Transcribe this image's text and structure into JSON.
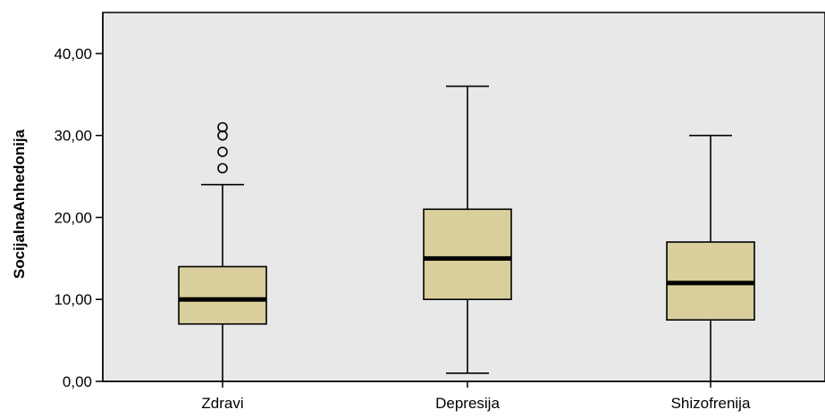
{
  "chart_data": {
    "type": "boxplot",
    "ylabel": "SocijalnaAnhedonija",
    "ylim": [
      0,
      45
    ],
    "yticks": [
      0,
      10,
      20,
      30,
      40
    ],
    "ytick_labels": [
      "0,00",
      "10,00",
      "20,00",
      "30,00",
      "40,00"
    ],
    "categories": [
      "Zdravi",
      "Depresija",
      "Shizofrenija"
    ],
    "boxes": [
      {
        "category": "Zdravi",
        "whisker_low": 0,
        "q1": 7,
        "median": 10,
        "q3": 14,
        "whisker_high": 24,
        "outliers": [
          26,
          28,
          30,
          31
        ]
      },
      {
        "category": "Depresija",
        "whisker_low": 1,
        "q1": 10,
        "median": 15,
        "q3": 21,
        "whisker_high": 36,
        "outliers": []
      },
      {
        "category": "Shizofrenija",
        "whisker_low": 0,
        "q1": 7.5,
        "median": 12,
        "q3": 17,
        "whisker_high": 30,
        "outliers": []
      }
    ],
    "grid": false,
    "colors": {
      "plot_bg": "#e8e8e8",
      "box_fill": "#d8cf9c",
      "stroke": "#000000"
    }
  }
}
